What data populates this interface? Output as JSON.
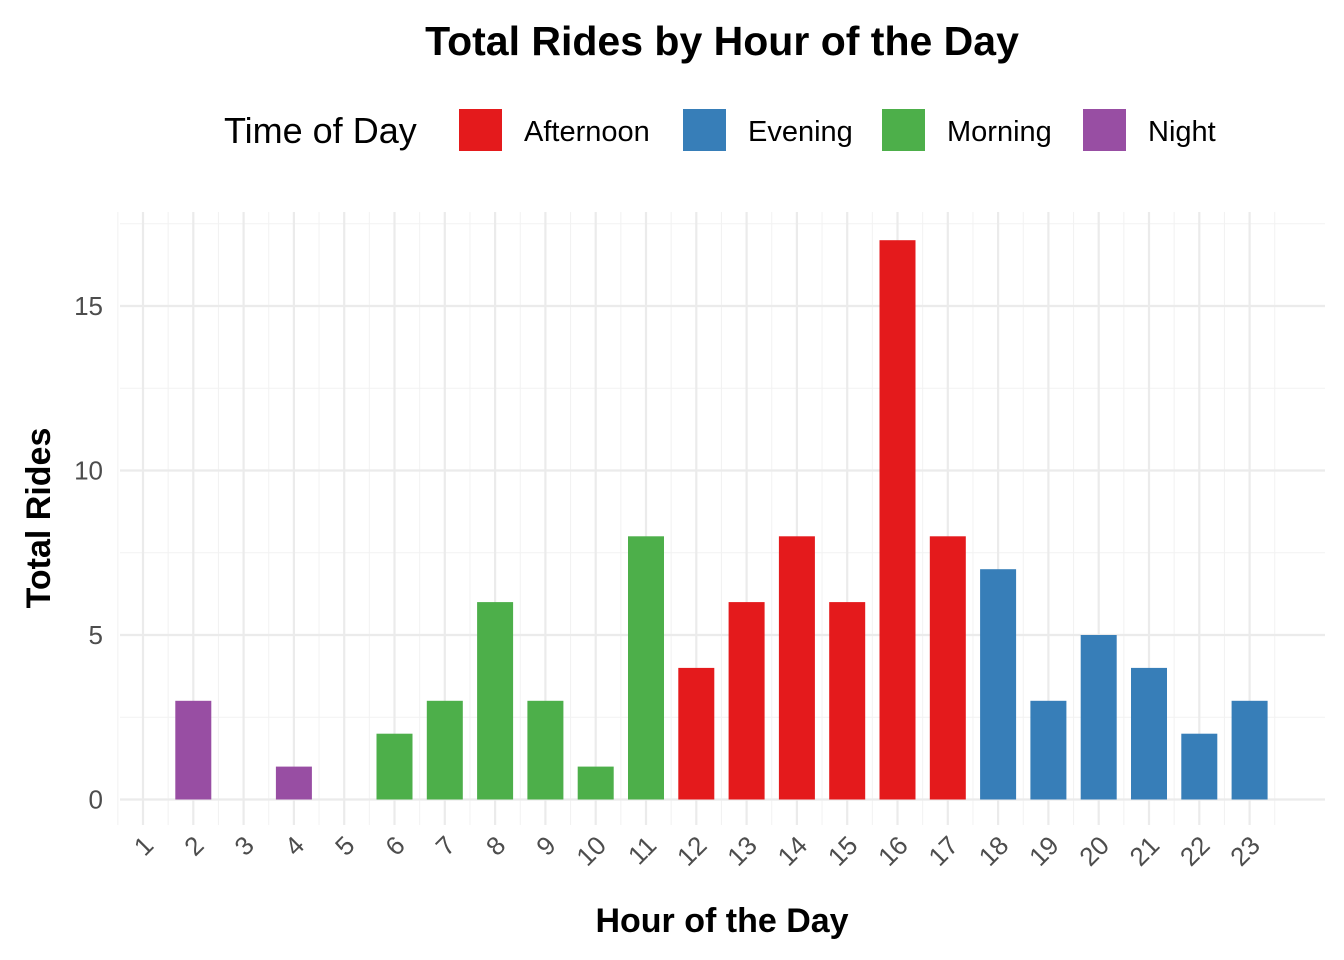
{
  "chart_data": {
    "type": "bar",
    "title": "Total Rides by Hour of the Day",
    "xlabel": "Hour of the Day",
    "ylabel": "Total Rides",
    "categories": [
      "1",
      "2",
      "3",
      "4",
      "5",
      "6",
      "7",
      "8",
      "9",
      "10",
      "11",
      "12",
      "13",
      "14",
      "15",
      "16",
      "17",
      "18",
      "19",
      "20",
      "21",
      "22",
      "23"
    ],
    "values": [
      0,
      3,
      0,
      1,
      0,
      2,
      3,
      6,
      3,
      1,
      8,
      4,
      6,
      8,
      6,
      17,
      8,
      7,
      3,
      5,
      4,
      2,
      3
    ],
    "groups": [
      "Night",
      "Night",
      "Night",
      "Night",
      "Night",
      "Morning",
      "Morning",
      "Morning",
      "Morning",
      "Morning",
      "Morning",
      "Afternoon",
      "Afternoon",
      "Afternoon",
      "Afternoon",
      "Afternoon",
      "Afternoon",
      "Evening",
      "Evening",
      "Evening",
      "Evening",
      "Evening",
      "Evening"
    ],
    "ylim": [
      0,
      17.85
    ],
    "yticks": [
      0,
      5,
      10,
      15
    ],
    "grid": true,
    "legend": {
      "title": "Time of Day",
      "position": "top",
      "entries": [
        {
          "name": "Afternoon",
          "color": "#E41A1C"
        },
        {
          "name": "Evening",
          "color": "#377EB8"
        },
        {
          "name": "Morning",
          "color": "#4DAF4A"
        },
        {
          "name": "Night",
          "color": "#984EA3"
        }
      ]
    }
  }
}
